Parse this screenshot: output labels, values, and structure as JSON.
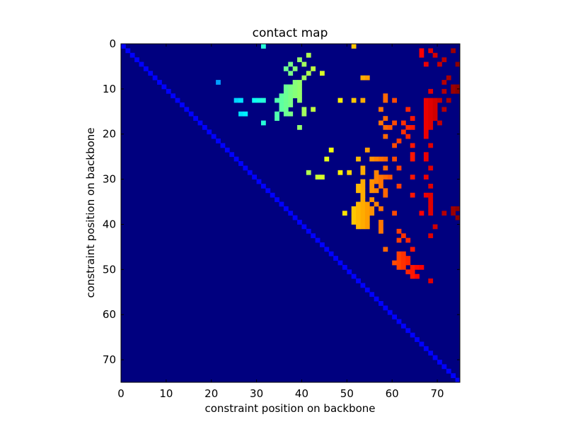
{
  "chart_data": {
    "type": "heatmap",
    "title": "contact map",
    "xlabel": "constraint position on backbone",
    "ylabel": "constraint position on backbone",
    "size": 75,
    "xlim": [
      0,
      75
    ],
    "ylim": [
      75,
      0
    ],
    "xticks": [
      0,
      10,
      20,
      30,
      40,
      50,
      60,
      70
    ],
    "yticks": [
      0,
      10,
      20,
      30,
      40,
      50,
      60,
      70
    ],
    "colormap": "jet",
    "value_range": [
      0,
      75
    ],
    "background_color": "#00007f",
    "diagonal_color": "#0000ff",
    "cells": [
      [
        0,
        31,
        31
      ],
      [
        0,
        51,
        51
      ],
      [
        1,
        66,
        66
      ],
      [
        1,
        68,
        68
      ],
      [
        1,
        73,
        73
      ],
      [
        2,
        41,
        41
      ],
      [
        2,
        66,
        66
      ],
      [
        2,
        69,
        69
      ],
      [
        3,
        39,
        39
      ],
      [
        3,
        71,
        71
      ],
      [
        4,
        37,
        37
      ],
      [
        4,
        40,
        40
      ],
      [
        4,
        67,
        67
      ],
      [
        4,
        70,
        70
      ],
      [
        4,
        74,
        74
      ],
      [
        5,
        36,
        36
      ],
      [
        5,
        38,
        38
      ],
      [
        5,
        42,
        42
      ],
      [
        6,
        37,
        37
      ],
      [
        6,
        41,
        41
      ],
      [
        6,
        44,
        44
      ],
      [
        7,
        40,
        40
      ],
      [
        7,
        53,
        53
      ],
      [
        7,
        54,
        54
      ],
      [
        7,
        72,
        72
      ],
      [
        8,
        21,
        21
      ],
      [
        8,
        38,
        38
      ],
      [
        8,
        39,
        39
      ],
      [
        8,
        71,
        71
      ],
      [
        9,
        36,
        36
      ],
      [
        9,
        37,
        37
      ],
      [
        9,
        38,
        38
      ],
      [
        9,
        39,
        39
      ],
      [
        9,
        73,
        73
      ],
      [
        9,
        74,
        74
      ],
      [
        10,
        36,
        36
      ],
      [
        10,
        37,
        37
      ],
      [
        10,
        38,
        38
      ],
      [
        10,
        39,
        39
      ],
      [
        10,
        68,
        68
      ],
      [
        10,
        71,
        71
      ],
      [
        10,
        73,
        73
      ],
      [
        10,
        74,
        74
      ],
      [
        11,
        35,
        35
      ],
      [
        11,
        36,
        36
      ],
      [
        11,
        37,
        37
      ],
      [
        11,
        38,
        38
      ],
      [
        11,
        39,
        39
      ],
      [
        11,
        58,
        58
      ],
      [
        12,
        25,
        25
      ],
      [
        12,
        26,
        26
      ],
      [
        12,
        29,
        29
      ],
      [
        12,
        30,
        30
      ],
      [
        12,
        31,
        31
      ],
      [
        12,
        34,
        34
      ],
      [
        12,
        35,
        35
      ],
      [
        12,
        36,
        36
      ],
      [
        12,
        37,
        37
      ],
      [
        12,
        39,
        39
      ],
      [
        12,
        48,
        48
      ],
      [
        12,
        51,
        51
      ],
      [
        12,
        53,
        53
      ],
      [
        12,
        58,
        58
      ],
      [
        12,
        60,
        60
      ],
      [
        12,
        67,
        67
      ],
      [
        12,
        68,
        68
      ],
      [
        12,
        69,
        69
      ],
      [
        12,
        70,
        70
      ],
      [
        12,
        72,
        72
      ],
      [
        13,
        35,
        35
      ],
      [
        13,
        36,
        36
      ],
      [
        13,
        37,
        37
      ],
      [
        13,
        67,
        67
      ],
      [
        13,
        68,
        68
      ],
      [
        13,
        69,
        69
      ],
      [
        14,
        35,
        35
      ],
      [
        14,
        36,
        36
      ],
      [
        14,
        40,
        40
      ],
      [
        14,
        42,
        42
      ],
      [
        14,
        57,
        57
      ],
      [
        14,
        63,
        63
      ],
      [
        14,
        67,
        67
      ],
      [
        14,
        68,
        68
      ],
      [
        14,
        69,
        69
      ],
      [
        14,
        71,
        71
      ],
      [
        15,
        26,
        26
      ],
      [
        15,
        27,
        27
      ],
      [
        15,
        34,
        34
      ],
      [
        15,
        36,
        36
      ],
      [
        15,
        37,
        37
      ],
      [
        15,
        40,
        40
      ],
      [
        15,
        67,
        67
      ],
      [
        15,
        68,
        68
      ],
      [
        15,
        69,
        69
      ],
      [
        16,
        34,
        34
      ],
      [
        16,
        58,
        58
      ],
      [
        16,
        64,
        64
      ],
      [
        16,
        67,
        67
      ],
      [
        16,
        68,
        68
      ],
      [
        16,
        69,
        69
      ],
      [
        17,
        31,
        31
      ],
      [
        17,
        57,
        57
      ],
      [
        17,
        60,
        60
      ],
      [
        17,
        62,
        62
      ],
      [
        17,
        67,
        67
      ],
      [
        17,
        68,
        68
      ],
      [
        17,
        70,
        70
      ],
      [
        18,
        39,
        39
      ],
      [
        18,
        58,
        58
      ],
      [
        18,
        59,
        59
      ],
      [
        18,
        63,
        63
      ],
      [
        18,
        64,
        64
      ],
      [
        18,
        67,
        67
      ],
      [
        18,
        68,
        68
      ],
      [
        19,
        62,
        62
      ],
      [
        19,
        67,
        67
      ],
      [
        20,
        58,
        58
      ],
      [
        20,
        63,
        63
      ],
      [
        20,
        67,
        67
      ],
      [
        21,
        61,
        61
      ],
      [
        22,
        60,
        60
      ],
      [
        22,
        64,
        64
      ],
      [
        22,
        68,
        68
      ],
      [
        23,
        46,
        46
      ],
      [
        23,
        54,
        54
      ],
      [
        24,
        64,
        64
      ],
      [
        24,
        67,
        67
      ],
      [
        25,
        45,
        45
      ],
      [
        25,
        52,
        52
      ],
      [
        25,
        55,
        55
      ],
      [
        25,
        56,
        56
      ],
      [
        25,
        57,
        57
      ],
      [
        25,
        58,
        58
      ],
      [
        25,
        60,
        60
      ],
      [
        25,
        64,
        64
      ],
      [
        25,
        67,
        67
      ],
      [
        27,
        53,
        53
      ],
      [
        27,
        58,
        58
      ],
      [
        27,
        61,
        61
      ],
      [
        27,
        68,
        68
      ],
      [
        28,
        41,
        41
      ],
      [
        28,
        48,
        48
      ],
      [
        28,
        50,
        50
      ],
      [
        28,
        53,
        53
      ],
      [
        28,
        56,
        56
      ],
      [
        29,
        43,
        43
      ],
      [
        29,
        44,
        44
      ],
      [
        29,
        56,
        56
      ],
      [
        29,
        57,
        57
      ],
      [
        29,
        58,
        58
      ],
      [
        29,
        59,
        59
      ],
      [
        29,
        64,
        64
      ],
      [
        29,
        67,
        67
      ],
      [
        30,
        53,
        53
      ],
      [
        30,
        55,
        55
      ],
      [
        30,
        56,
        56
      ],
      [
        30,
        57,
        57
      ],
      [
        31,
        52,
        52
      ],
      [
        31,
        53,
        53
      ],
      [
        31,
        55,
        55
      ],
      [
        31,
        57,
        57
      ],
      [
        31,
        61,
        61
      ],
      [
        31,
        68,
        68
      ],
      [
        32,
        52,
        52
      ],
      [
        32,
        53,
        53
      ],
      [
        32,
        55,
        55
      ],
      [
        32,
        56,
        56
      ],
      [
        32,
        58,
        58
      ],
      [
        33,
        53,
        53
      ],
      [
        33,
        58,
        58
      ],
      [
        33,
        64,
        64
      ],
      [
        33,
        67,
        67
      ],
      [
        33,
        68,
        68
      ],
      [
        34,
        53,
        53
      ],
      [
        34,
        55,
        55
      ],
      [
        34,
        68,
        68
      ],
      [
        35,
        52,
        52
      ],
      [
        35,
        53,
        53
      ],
      [
        35,
        54,
        54
      ],
      [
        35,
        56,
        56
      ],
      [
        35,
        68,
        68
      ],
      [
        36,
        51,
        51
      ],
      [
        36,
        52,
        52
      ],
      [
        36,
        53,
        53
      ],
      [
        36,
        54,
        54
      ],
      [
        36,
        55,
        55
      ],
      [
        36,
        57,
        57
      ],
      [
        36,
        68,
        68
      ],
      [
        36,
        73,
        73
      ],
      [
        36,
        74,
        74
      ],
      [
        37,
        49,
        49
      ],
      [
        37,
        51,
        51
      ],
      [
        37,
        52,
        52
      ],
      [
        37,
        53,
        53
      ],
      [
        37,
        54,
        54
      ],
      [
        37,
        55,
        55
      ],
      [
        37,
        60,
        60
      ],
      [
        37,
        66,
        66
      ],
      [
        37,
        68,
        68
      ],
      [
        37,
        71,
        71
      ],
      [
        37,
        73,
        73
      ],
      [
        38,
        51,
        51
      ],
      [
        38,
        52,
        52
      ],
      [
        38,
        53,
        53
      ],
      [
        38,
        54,
        54
      ],
      [
        38,
        74,
        74
      ],
      [
        39,
        51,
        51
      ],
      [
        39,
        52,
        52
      ],
      [
        39,
        53,
        53
      ],
      [
        39,
        54,
        54
      ],
      [
        39,
        57,
        57
      ],
      [
        40,
        52,
        52
      ],
      [
        40,
        53,
        53
      ],
      [
        40,
        54,
        54
      ],
      [
        40,
        57,
        57
      ],
      [
        40,
        69,
        69
      ],
      [
        41,
        57,
        57
      ],
      [
        41,
        61,
        61
      ],
      [
        42,
        62,
        62
      ],
      [
        42,
        68,
        68
      ],
      [
        43,
        61,
        61
      ],
      [
        43,
        63,
        63
      ],
      [
        45,
        58,
        58
      ],
      [
        45,
        64,
        64
      ],
      [
        46,
        61,
        61
      ],
      [
        46,
        62,
        62
      ],
      [
        47,
        61,
        61
      ],
      [
        47,
        62,
        62
      ],
      [
        47,
        63,
        63
      ],
      [
        48,
        60,
        60
      ],
      [
        48,
        61,
        61
      ],
      [
        48,
        62,
        62
      ],
      [
        48,
        63,
        63
      ],
      [
        49,
        61,
        61
      ],
      [
        49,
        62,
        62
      ],
      [
        49,
        64,
        64
      ],
      [
        49,
        65,
        65
      ],
      [
        49,
        66,
        66
      ],
      [
        50,
        63,
        63
      ],
      [
        50,
        64,
        64
      ],
      [
        51,
        64,
        64
      ],
      [
        51,
        65,
        65
      ],
      [
        52,
        68,
        68
      ]
    ]
  }
}
